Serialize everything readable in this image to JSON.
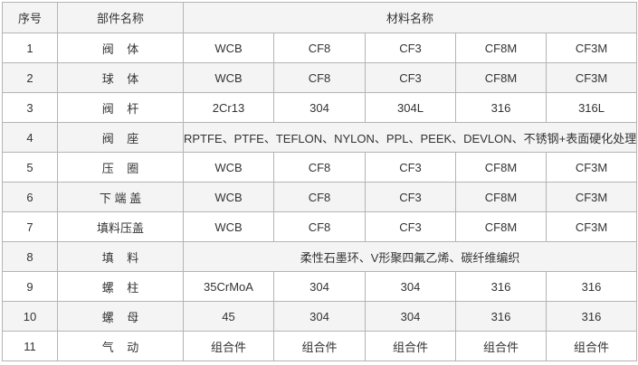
{
  "header": {
    "no": "序号",
    "part": "部件名称",
    "material": "材料名称"
  },
  "rows": [
    {
      "no": "1",
      "part": "阀    体",
      "materials": [
        "WCB",
        "CF8",
        "CF3",
        "CF8M",
        "CF3M"
      ]
    },
    {
      "no": "2",
      "part": "球    体",
      "materials": [
        "WCB",
        "CF8",
        "CF3",
        "CF8M",
        "CF3M"
      ]
    },
    {
      "no": "3",
      "part": "阀    杆",
      "materials": [
        "2Cr13",
        "304",
        "304L",
        "316",
        "316L"
      ]
    },
    {
      "no": "4",
      "part": "阀    座",
      "merged": "RPTFE、PTFE、TEFLON、NYLON、PPL、PEEK、DEVLON、不锈钢+表面硬化处理"
    },
    {
      "no": "5",
      "part": "压    圈",
      "materials": [
        "WCB",
        "CF8",
        "CF3",
        "CF8M",
        "CF3M"
      ]
    },
    {
      "no": "6",
      "part": "下 端 盖",
      "materials": [
        "WCB",
        "CF8",
        "CF3",
        "CF8M",
        "CF3M"
      ]
    },
    {
      "no": "7",
      "part": "填料压盖",
      "materials": [
        "WCB",
        "CF8",
        "CF3",
        "CF8M",
        "CF3M"
      ]
    },
    {
      "no": "8",
      "part": "填    料",
      "merged": "柔性石墨环、V形聚四氟乙烯、碳纤维编织"
    },
    {
      "no": "9",
      "part": "螺    柱",
      "materials": [
        "35CrMoA",
        "304",
        "304",
        "316",
        "316"
      ]
    },
    {
      "no": "10",
      "part": "螺    母",
      "materials": [
        "45",
        "304",
        "304",
        "316",
        "316"
      ]
    },
    {
      "no": "11",
      "part": "气    动",
      "materials": [
        "组合件",
        "组合件",
        "组合件",
        "组合件",
        "组合件"
      ]
    }
  ]
}
